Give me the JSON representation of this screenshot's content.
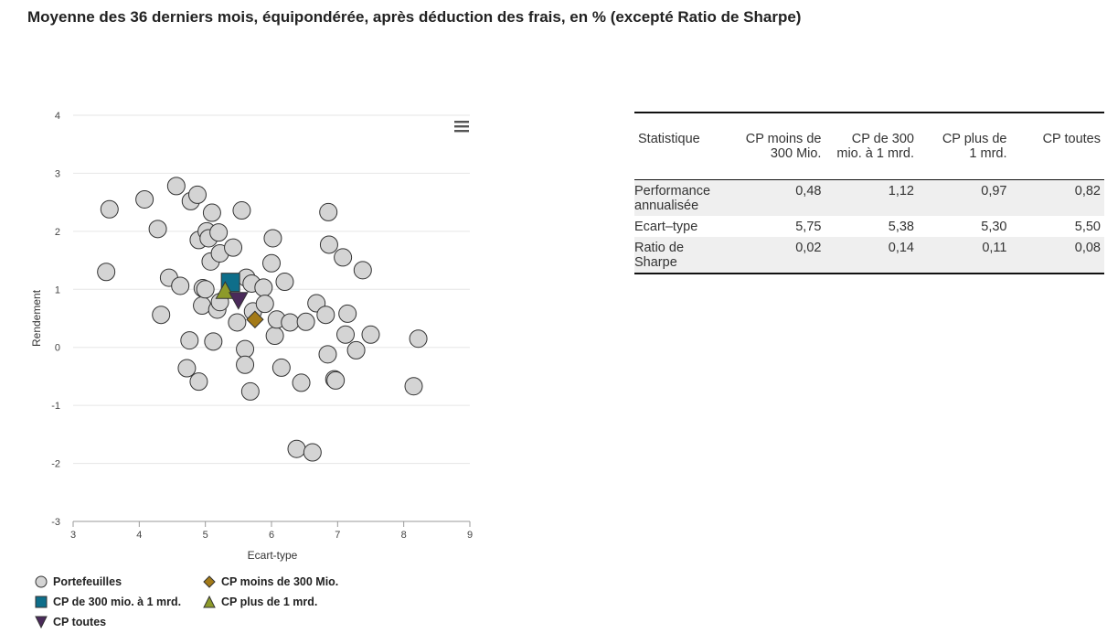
{
  "title": "Moyenne des 36 derniers mois, équipondérée, après déduction des frais, en % (excepté Ratio de Sharpe)",
  "colors": {
    "portfolio": "#d4d4d4",
    "cp_moins": "#a37a18",
    "cp_300": "#0e6e8a",
    "cp_plus": "#8d9a2a",
    "cp_toutes": "#4a2a5a",
    "grid": "#e6e6e6"
  },
  "icons": {
    "menu": "hamburger-menu-icon"
  },
  "chart_data": {
    "type": "scatter",
    "xlabel": "Ecart-type",
    "ylabel": "Rendement",
    "xlim": [
      3,
      9
    ],
    "ylim": [
      -3,
      4
    ],
    "x_ticks": [
      "3",
      "4",
      "5",
      "6",
      "7",
      "8",
      "9"
    ],
    "y_ticks": [
      "4",
      "3",
      "2",
      "1",
      "0",
      "-1",
      "-2",
      "-3"
    ],
    "series": [
      {
        "name": "Portefeuilles",
        "marker": "circle",
        "points": [
          [
            3.5,
            1.3
          ],
          [
            3.55,
            2.38
          ],
          [
            4.08,
            2.55
          ],
          [
            4.28,
            2.04
          ],
          [
            4.33,
            0.56
          ],
          [
            4.45,
            1.2
          ],
          [
            4.56,
            2.78
          ],
          [
            4.62,
            1.06
          ],
          [
            4.72,
            -0.36
          ],
          [
            4.76,
            0.12
          ],
          [
            4.78,
            2.52
          ],
          [
            4.88,
            2.63
          ],
          [
            4.9,
            1.85
          ],
          [
            4.9,
            -0.59
          ],
          [
            4.95,
            0.72
          ],
          [
            4.96,
            1.02
          ],
          [
            5.0,
            1.0
          ],
          [
            5.02,
            2.0
          ],
          [
            5.05,
            1.88
          ],
          [
            5.08,
            1.48
          ],
          [
            5.1,
            2.32
          ],
          [
            5.12,
            0.1
          ],
          [
            5.18,
            0.65
          ],
          [
            5.2,
            1.98
          ],
          [
            5.22,
            1.62
          ],
          [
            5.22,
            0.78
          ],
          [
            5.42,
            1.72
          ],
          [
            5.48,
            0.43
          ],
          [
            5.55,
            2.36
          ],
          [
            5.6,
            -0.03
          ],
          [
            5.6,
            -0.3
          ],
          [
            5.62,
            1.2
          ],
          [
            5.68,
            -0.76
          ],
          [
            5.7,
            1.1
          ],
          [
            5.72,
            0.62
          ],
          [
            5.88,
            1.03
          ],
          [
            5.9,
            0.75
          ],
          [
            6.0,
            1.45
          ],
          [
            6.02,
            1.88
          ],
          [
            6.05,
            0.2
          ],
          [
            6.08,
            0.48
          ],
          [
            6.15,
            -0.35
          ],
          [
            6.2,
            1.13
          ],
          [
            6.28,
            0.43
          ],
          [
            6.38,
            -1.75
          ],
          [
            6.45,
            -0.61
          ],
          [
            6.52,
            0.44
          ],
          [
            6.62,
            -1.81
          ],
          [
            6.68,
            0.76
          ],
          [
            6.82,
            0.56
          ],
          [
            6.85,
            -0.12
          ],
          [
            6.86,
            2.33
          ],
          [
            6.87,
            1.77
          ],
          [
            6.95,
            -0.55
          ],
          [
            6.97,
            -0.57
          ],
          [
            7.08,
            1.55
          ],
          [
            7.12,
            0.22
          ],
          [
            7.15,
            0.58
          ],
          [
            7.28,
            -0.05
          ],
          [
            7.38,
            1.33
          ],
          [
            7.5,
            0.22
          ],
          [
            8.15,
            -0.67
          ],
          [
            8.22,
            0.15
          ]
        ]
      },
      {
        "name": "CP moins de 300 Mio.",
        "marker": "diamond",
        "points": [
          [
            5.75,
            0.48
          ]
        ]
      },
      {
        "name": "CP de 300 mio. à 1 mrd.",
        "marker": "square",
        "points": [
          [
            5.38,
            1.12
          ]
        ]
      },
      {
        "name": "CP plus de 1 mrd.",
        "marker": "triangle-up",
        "points": [
          [
            5.3,
            0.97
          ]
        ]
      },
      {
        "name": "CP toutes",
        "marker": "triangle-down",
        "points": [
          [
            5.5,
            0.82
          ]
        ]
      }
    ]
  },
  "legend": {
    "portefeuilles": "Portefeuilles",
    "cp_moins": "CP moins de 300 Mio.",
    "cp_300": "CP de 300 mio. à 1 mrd.",
    "cp_plus": "CP plus de 1 mrd.",
    "cp_toutes": "CP toutes"
  },
  "table": {
    "headers": {
      "stat": "Statistique",
      "c1a": "CP moins de",
      "c1b": "300 Mio.",
      "c2a": "CP de 300",
      "c2b": "mio. à 1 mrd.",
      "c3a": "CP plus de",
      "c3b": "1 mrd.",
      "c4a": "CP toutes"
    },
    "rows": [
      {
        "label_a": "Performance",
        "label_b": "annualisée",
        "v1": "0,48",
        "v2": "1,12",
        "v3": "0,97",
        "v4": "0,82"
      },
      {
        "label_a": "Ecart–type",
        "label_b": "",
        "v1": "5,75",
        "v2": "5,38",
        "v3": "5,30",
        "v4": "5,50"
      },
      {
        "label_a": "Ratio de",
        "label_b": "Sharpe",
        "v1": "0,02",
        "v2": "0,14",
        "v3": "0,11",
        "v4": "0,08"
      }
    ]
  }
}
